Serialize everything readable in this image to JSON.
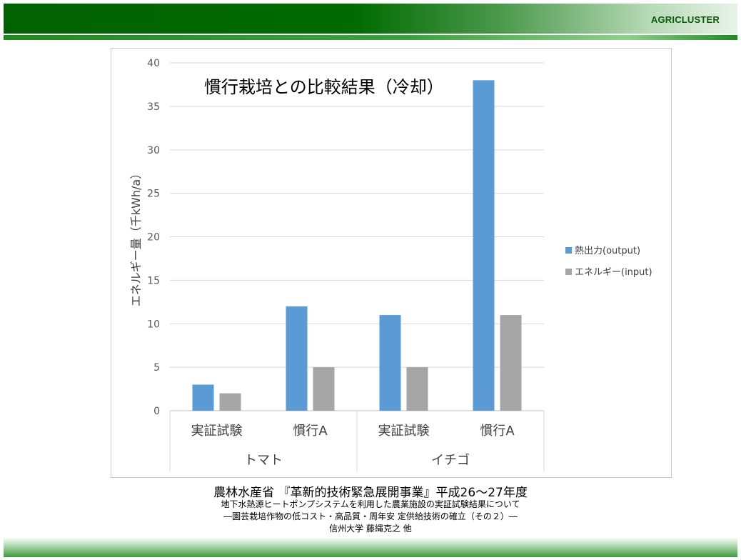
{
  "header": {
    "brand": "AGRICLUSTER"
  },
  "chart_data": {
    "type": "bar",
    "title": "慣行栽培との比較結果（冷却）",
    "ylabel": "エネルギー量（千kWh/a）",
    "xlabel": "",
    "ylim": [
      0,
      40
    ],
    "yticks": [
      0,
      5,
      10,
      15,
      20,
      25,
      30,
      35,
      40
    ],
    "grid": true,
    "legend_position": "right",
    "groups": [
      {
        "label": "トマト",
        "categories": [
          "実証試験",
          "慣行A"
        ]
      },
      {
        "label": "イチゴ",
        "categories": [
          "実証試験",
          "慣行A"
        ]
      }
    ],
    "categories": [
      "実証試験",
      "慣行A",
      "実証試験",
      "慣行A"
    ],
    "series": [
      {
        "name": "熱出力(output)",
        "color": "#5b9bd5",
        "values": [
          3,
          12,
          11,
          38
        ]
      },
      {
        "name": "エネルギー(input)",
        "color": "#a5a5a5",
        "values": [
          2,
          5,
          5,
          11
        ]
      }
    ]
  },
  "captions": {
    "line1": "農林水産省 『革新的技術緊急展開事業』平成26～27年度",
    "line2": "地下水熱源ヒートポンプシステムを利用した農業施設の実証試験結果について",
    "line3": "―園芸栽培作物の低コスト・高品質・周年安 定供給技術の確立（その２）―",
    "line4": "信州大学 藤縄克之 他"
  }
}
